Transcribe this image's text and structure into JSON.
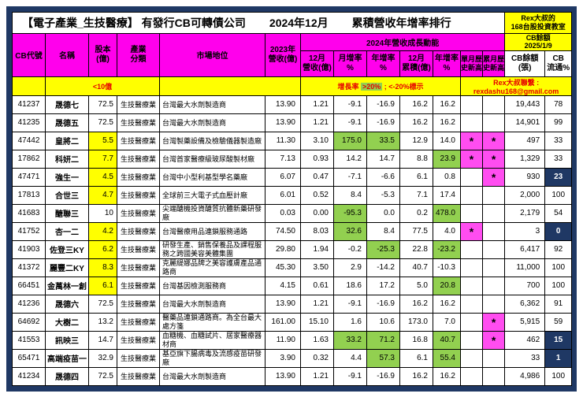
{
  "colors": {
    "magenta": "#FF00EC",
    "yellow": "#FFFF00",
    "green": "#92D050",
    "navy": "#1F3864",
    "red": "#E60000",
    "star": "#FF4DF0",
    "frame": "#1F3864"
  },
  "title": {
    "main": "【電子產業_生技醫療】 有發行CB可轉債公司",
    "period": "2024年12月",
    "ranking": "累積營收年增率排行"
  },
  "brand": {
    "line1": "Rex大叔的",
    "line2": "168台股投資教室"
  },
  "header": {
    "cb_id": "CB代號",
    "name": "名稱",
    "capital": "股本\n(億)",
    "industry": "產業\n分類",
    "market": "市場地位",
    "rev2023": "2023年\n營收(億)",
    "growth_group": "2024年營收成長動能",
    "cb_group": "CB餘額\n2025/1/9",
    "dec_rev": "12月\n營收(億)",
    "mom": "月增率\n%",
    "yoy": "年增率\n%",
    "cum": "12月\n累積(億)",
    "cum_yoy": "年增率\n%",
    "m_high": "單月歷\n史新高",
    "c_high": "累月歷\n史新高",
    "cb_balance": "CB餘額\n(張)",
    "cb_float": "CB\n流通%"
  },
  "notes": {
    "capital_note": "<10億",
    "growth_note_prefix": "增長率",
    "growth_note_hl": ">20%",
    "growth_note_suffix": "; <-20%標示",
    "contact": "Rex大叔聯繫 : rexdashu168@gmail.com"
  },
  "rows": [
    {
      "id": "41237",
      "name": "晟德七",
      "capital": "72.5",
      "capital_hl": false,
      "industry": "生技醫療業",
      "market": "台灣最大水劑製造商",
      "rev2023": "13.90",
      "dec_rev": "1.21",
      "mom": "-9.1",
      "mom_hl": false,
      "yoy": "-16.9",
      "yoy_hl": false,
      "cum": "16.2",
      "cum_yoy": "16.2",
      "cum_yoy_hl": false,
      "m_high": "",
      "c_high": "",
      "cb_balance": "19,443",
      "cb_float": "78",
      "float_navy": false
    },
    {
      "id": "41235",
      "name": "晟德五",
      "capital": "72.5",
      "capital_hl": false,
      "industry": "生技醫療業",
      "market": "台灣最大水劑製造商",
      "rev2023": "13.90",
      "dec_rev": "1.21",
      "mom": "-9.1",
      "mom_hl": false,
      "yoy": "-16.9",
      "yoy_hl": false,
      "cum": "16.2",
      "cum_yoy": "16.2",
      "cum_yoy_hl": false,
      "m_high": "",
      "c_high": "",
      "cb_balance": "14,901",
      "cb_float": "99",
      "float_navy": false
    },
    {
      "id": "47442",
      "name": "皇將二",
      "capital": "5.5",
      "capital_hl": true,
      "industry": "生技醫療業",
      "market": "台灣製藥設備及檢驗儀器製造廠",
      "rev2023": "11.30",
      "dec_rev": "3.10",
      "mom": "175.0",
      "mom_hl": true,
      "yoy": "33.5",
      "yoy_hl": true,
      "cum": "12.9",
      "cum_yoy": "14.0",
      "cum_yoy_hl": false,
      "m_high": "*",
      "c_high": "*",
      "cb_balance": "497",
      "cb_float": "33",
      "float_navy": false
    },
    {
      "id": "17862",
      "name": "科妍二",
      "capital": "7.7",
      "capital_hl": true,
      "industry": "生技醫療業",
      "market": "台灣首家醫療級玻尿酸製材廠",
      "rev2023": "7.13",
      "dec_rev": "0.93",
      "mom": "14.2",
      "mom_hl": false,
      "yoy": "14.7",
      "yoy_hl": false,
      "cum": "8.8",
      "cum_yoy": "23.9",
      "cum_yoy_hl": true,
      "m_high": "*",
      "c_high": "*",
      "cb_balance": "1,329",
      "cb_float": "33",
      "float_navy": false
    },
    {
      "id": "47471",
      "name": "強生一",
      "capital": "4.5",
      "capital_hl": true,
      "industry": "生技醫療業",
      "market": "台灣中小型利基型學名藥廠",
      "rev2023": "6.07",
      "dec_rev": "0.47",
      "mom": "-7.1",
      "mom_hl": false,
      "yoy": "-6.6",
      "yoy_hl": false,
      "cum": "6.1",
      "cum_yoy": "0.8",
      "cum_yoy_hl": false,
      "m_high": "",
      "c_high": "*",
      "cb_balance": "930",
      "cb_float": "23",
      "float_navy": true
    },
    {
      "id": "17813",
      "name": "合世三",
      "capital": "4.7",
      "capital_hl": true,
      "industry": "生技醫療業",
      "market": "全球前三大電子式血壓計廠",
      "rev2023": "6.01",
      "dec_rev": "0.52",
      "mom": "8.4",
      "mom_hl": false,
      "yoy": "-5.3",
      "yoy_hl": false,
      "cum": "7.1",
      "cum_yoy": "17.4",
      "cum_yoy_hl": false,
      "m_high": "",
      "c_high": "",
      "cb_balance": "2,000",
      "cb_float": "100",
      "float_navy": false
    },
    {
      "id": "41683",
      "name": "醣聯三",
      "capital": "10",
      "capital_hl": false,
      "industry": "生技醫療業",
      "market": "尖端醣機投資醣質抗體新藥研發廠",
      "rev2023": "0.03",
      "dec_rev": "0.00",
      "mom": "-95.3",
      "mom_hl": true,
      "yoy": "0.0",
      "yoy_hl": false,
      "cum": "0.2",
      "cum_yoy": "478.0",
      "cum_yoy_hl": true,
      "m_high": "",
      "c_high": "",
      "cb_balance": "2,179",
      "cb_float": "54",
      "float_navy": false
    },
    {
      "id": "41752",
      "name": "杏一二",
      "capital": "4.2",
      "capital_hl": true,
      "industry": "生技醫療業",
      "market": "台灣醫療用品連鎖服務通路",
      "rev2023": "74.50",
      "dec_rev": "8.03",
      "mom": "32.6",
      "mom_hl": true,
      "yoy": "8.4",
      "yoy_hl": false,
      "cum": "77.5",
      "cum_yoy": "4.0",
      "cum_yoy_hl": false,
      "m_high": "*",
      "c_high": "",
      "cb_balance": "3",
      "cb_float": "0",
      "float_navy": true
    },
    {
      "id": "41903",
      "name": "佐登三KY",
      "capital": "6.2",
      "capital_hl": true,
      "industry": "生技醫療業",
      "market": "研發生產、銷售保養品及課程服務之跨國美容美體集團",
      "rev2023": "29.80",
      "dec_rev": "1.94",
      "mom": "-0.2",
      "mom_hl": false,
      "yoy": "-25.3",
      "yoy_hl": true,
      "cum": "22.8",
      "cum_yoy": "-23.2",
      "cum_yoy_hl": true,
      "m_high": "",
      "c_high": "",
      "cb_balance": "6,417",
      "cb_float": "92",
      "float_navy": false
    },
    {
      "id": "41372",
      "name": "麗豐二KY",
      "capital": "8.3",
      "capital_hl": true,
      "industry": "生技醫療業",
      "market": "克麗緹娜品牌之美容護膚產品通路商",
      "rev2023": "45.30",
      "dec_rev": "3.50",
      "mom": "2.9",
      "mom_hl": false,
      "yoy": "-14.2",
      "yoy_hl": false,
      "cum": "40.7",
      "cum_yoy": "-10.3",
      "cum_yoy_hl": false,
      "m_high": "",
      "c_high": "",
      "cb_balance": "11,000",
      "cb_float": "100",
      "float_navy": false
    },
    {
      "id": "66451",
      "name": "金萬林一創",
      "capital": "6.1",
      "capital_hl": true,
      "industry": "生技醫療業",
      "market": "台灣基因檢測服務商",
      "rev2023": "4.15",
      "dec_rev": "0.61",
      "mom": "18.6",
      "mom_hl": false,
      "yoy": "17.2",
      "yoy_hl": false,
      "cum": "5.0",
      "cum_yoy": "20.8",
      "cum_yoy_hl": true,
      "m_high": "",
      "c_high": "",
      "cb_balance": "700",
      "cb_float": "100",
      "float_navy": false
    },
    {
      "id": "41236",
      "name": "晟德六",
      "capital": "72.5",
      "capital_hl": false,
      "industry": "生技醫療業",
      "market": "台灣最大水劑製造商",
      "rev2023": "13.90",
      "dec_rev": "1.21",
      "mom": "-9.1",
      "mom_hl": false,
      "yoy": "-16.9",
      "yoy_hl": false,
      "cum": "16.2",
      "cum_yoy": "16.2",
      "cum_yoy_hl": false,
      "m_high": "",
      "c_high": "",
      "cb_balance": "6,362",
      "cb_float": "91",
      "float_navy": false
    },
    {
      "id": "64692",
      "name": "大樹二",
      "capital": "13.2",
      "capital_hl": false,
      "industry": "生技醫療業",
      "market": "醫藥品連鎖通路商。為全台最大處方箋",
      "rev2023": "161.00",
      "dec_rev": "15.10",
      "mom": "1.6",
      "mom_hl": false,
      "yoy": "10.6",
      "yoy_hl": false,
      "cum": "173.0",
      "cum_yoy": "7.0",
      "cum_yoy_hl": false,
      "m_high": "",
      "c_high": "*",
      "cb_balance": "5,915",
      "cb_float": "59",
      "float_navy": false
    },
    {
      "id": "41553",
      "name": "訊映三",
      "capital": "14.7",
      "capital_hl": false,
      "industry": "生技醫療業",
      "market": "血糖機、血糖試片、居家醫療器材商",
      "rev2023": "11.90",
      "dec_rev": "1.63",
      "mom": "33.2",
      "mom_hl": true,
      "yoy": "71.2",
      "yoy_hl": true,
      "cum": "16.8",
      "cum_yoy": "40.7",
      "cum_yoy_hl": true,
      "m_high": "",
      "c_high": "*",
      "cb_balance": "462",
      "cb_float": "15",
      "float_navy": true
    },
    {
      "id": "65471",
      "name": "高端疫苗一",
      "capital": "32.9",
      "capital_hl": false,
      "industry": "生技醫療業",
      "market": "基亞旗下腸病毒及流感疫苗研發廠",
      "rev2023": "3.90",
      "dec_rev": "0.32",
      "mom": "4.4",
      "mom_hl": false,
      "yoy": "57.3",
      "yoy_hl": true,
      "cum": "6.1",
      "cum_yoy": "55.4",
      "cum_yoy_hl": true,
      "m_high": "",
      "c_high": "",
      "cb_balance": "33",
      "cb_float": "1",
      "float_navy": true
    },
    {
      "id": "41234",
      "name": "晟德四",
      "capital": "72.5",
      "capital_hl": false,
      "industry": "生技醫療業",
      "market": "台灣最大水劑製造商",
      "rev2023": "13.90",
      "dec_rev": "1.21",
      "mom": "-9.1",
      "mom_hl": false,
      "yoy": "-16.9",
      "yoy_hl": false,
      "cum": "16.2",
      "cum_yoy": "16.2",
      "cum_yoy_hl": false,
      "m_high": "",
      "c_high": "",
      "cb_balance": "4,986",
      "cb_float": "100",
      "float_navy": false
    }
  ]
}
